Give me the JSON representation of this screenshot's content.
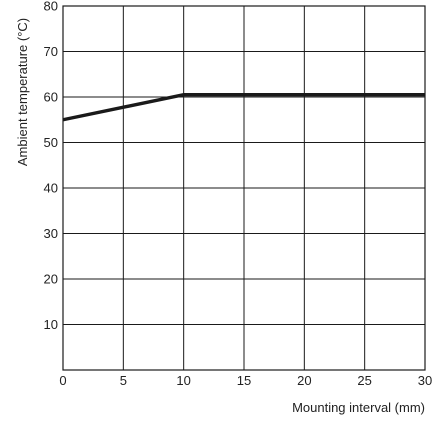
{
  "chart_data": {
    "type": "line",
    "title": "",
    "xlabel": "Mounting interval (mm)",
    "ylabel": "Ambient temperature (°C)",
    "xlim": [
      0,
      30
    ],
    "ylim": [
      0,
      80
    ],
    "xticks": [
      0,
      5,
      10,
      15,
      20,
      25,
      30
    ],
    "yticks": [
      10,
      20,
      30,
      40,
      50,
      60,
      70,
      80
    ],
    "grid": true,
    "series": [
      {
        "x": [
          0,
          10,
          30
        ],
        "y": [
          55,
          60.5,
          60.5
        ]
      }
    ]
  },
  "colors": {
    "grid": "#1a1a1a",
    "line": "#1a1a1a"
  }
}
